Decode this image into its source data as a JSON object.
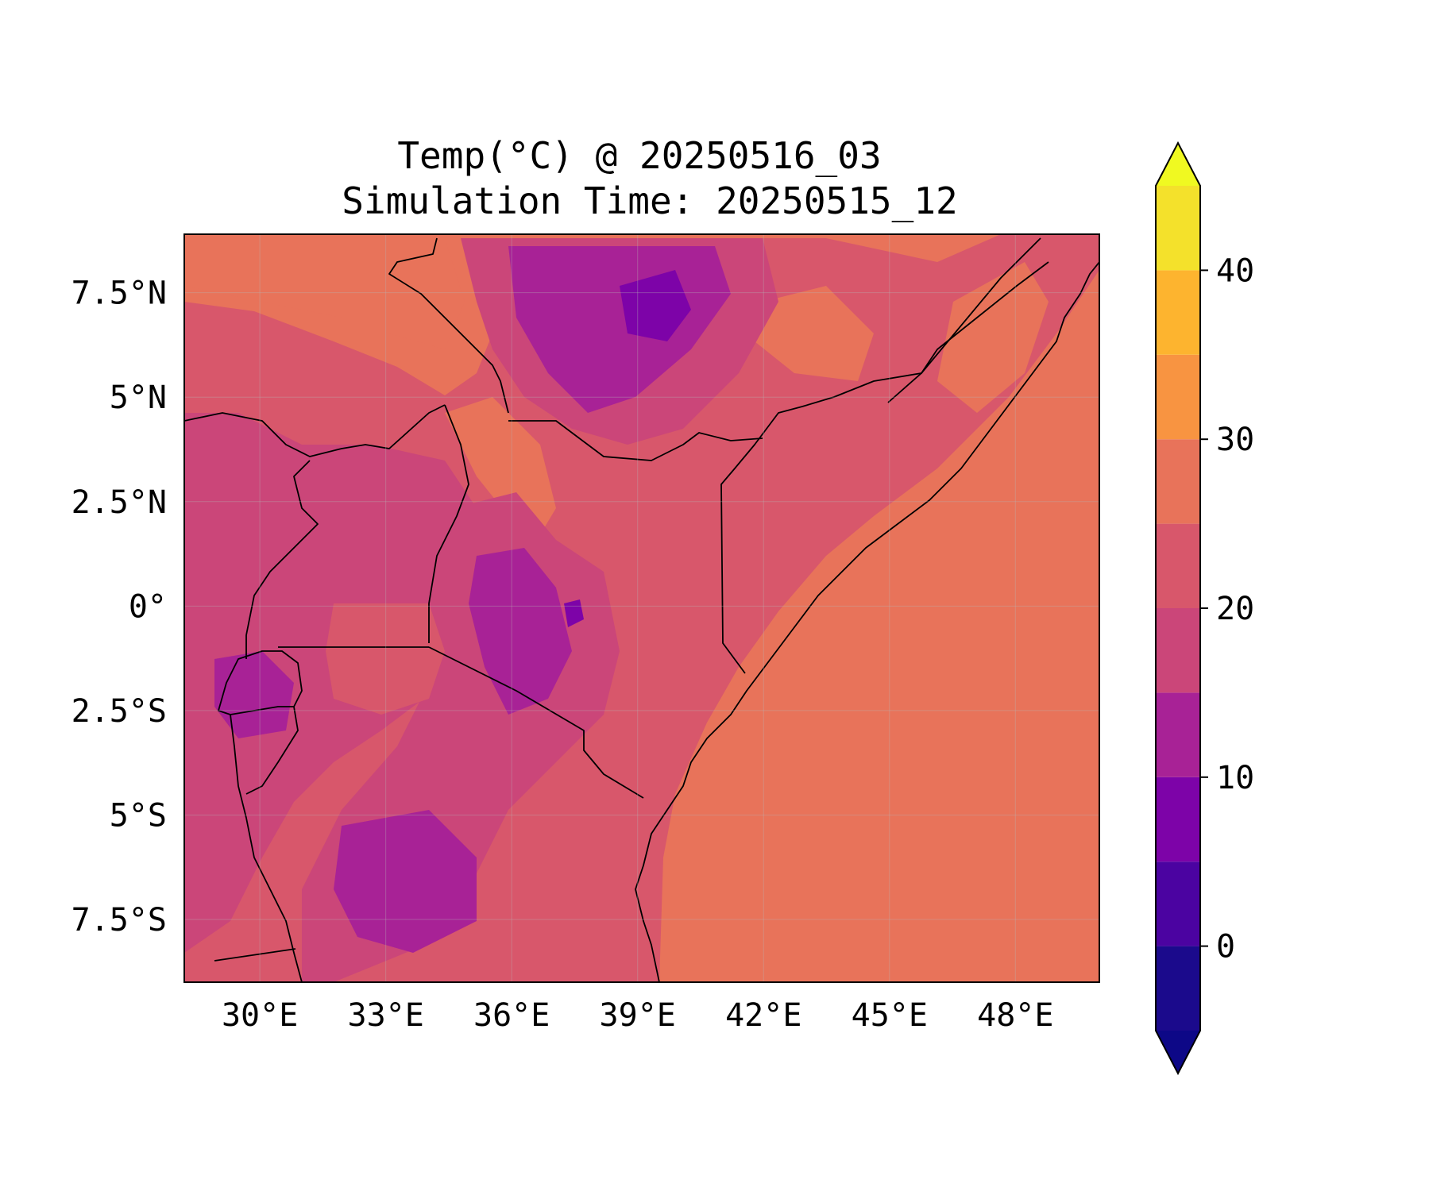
{
  "title": {
    "line1": "Temp(°C) @ 20250516_03",
    "line2": "Simulation Time: 20250515_12"
  },
  "map": {
    "variable": "Temperature",
    "units": "°C",
    "lon_range": [
      28.2,
      50.0
    ],
    "lat_range": [
      -9.0,
      8.9
    ],
    "x_ticks": [
      {
        "value": 30,
        "label": "30°E"
      },
      {
        "value": 33,
        "label": "33°E"
      },
      {
        "value": 36,
        "label": "36°E"
      },
      {
        "value": 39,
        "label": "39°E"
      },
      {
        "value": 42,
        "label": "42°E"
      },
      {
        "value": 45,
        "label": "45°E"
      },
      {
        "value": 48,
        "label": "48°E"
      }
    ],
    "y_ticks": [
      {
        "value": 7.5,
        "label": "7.5°N"
      },
      {
        "value": 5,
        "label": "5°N"
      },
      {
        "value": 2.5,
        "label": "2.5°N"
      },
      {
        "value": 0,
        "label": "0°"
      },
      {
        "value": -2.5,
        "label": "2.5°S"
      },
      {
        "value": -5,
        "label": "5°S"
      },
      {
        "value": -7.5,
        "label": "7.5°S"
      }
    ],
    "gridlines": true,
    "ocean_value_c": 27
  },
  "colorbar": {
    "levels": [
      -5,
      0,
      5,
      10,
      15,
      20,
      25,
      30,
      35,
      40,
      45
    ],
    "colors": [
      "#1b0a8c",
      "#4b03a1",
      "#7d03a8",
      "#a82296",
      "#cb4679",
      "#d8576b",
      "#e8735a",
      "#f89441",
      "#fdb42f",
      "#f4e12b"
    ],
    "under_color": "#0d0887",
    "over_color": "#f0f921",
    "extend": "both",
    "ticks": [
      {
        "value": 0,
        "label": "0"
      },
      {
        "value": 10,
        "label": "10"
      },
      {
        "value": 20,
        "label": "20"
      },
      {
        "value": 30,
        "label": "30"
      },
      {
        "value": 40,
        "label": "40"
      }
    ]
  }
}
